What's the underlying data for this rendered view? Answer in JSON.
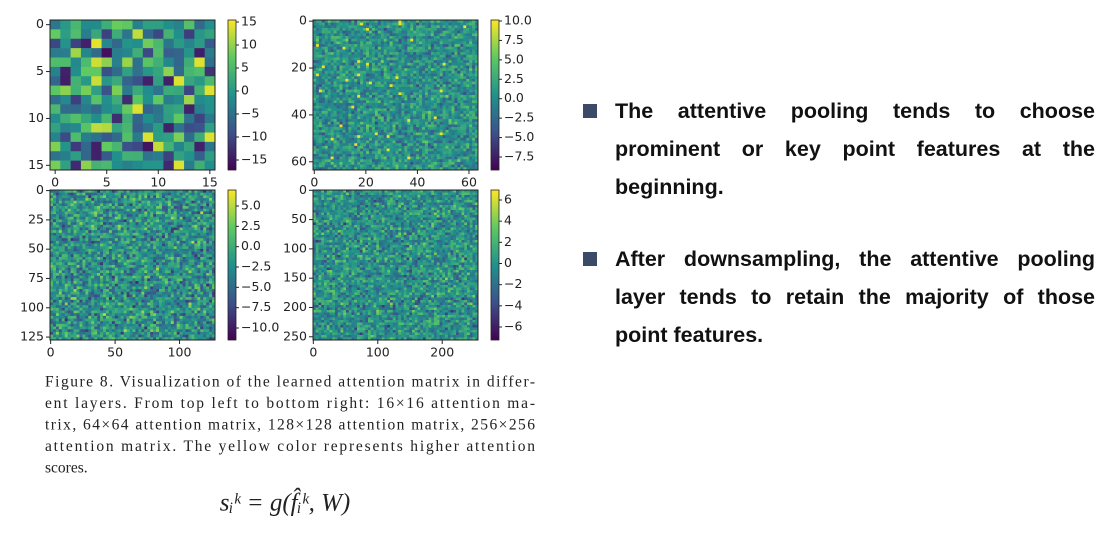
{
  "figure": {
    "panels": [
      {
        "xticks": [
          "0",
          "5",
          "10",
          "15"
        ],
        "yticks": [
          "0",
          "5",
          "10",
          "15"
        ],
        "colorbar_ticks": [
          "15",
          "10",
          "5",
          "0",
          "−5",
          "−10",
          "−15"
        ]
      },
      {
        "xticks": [
          "0",
          "20",
          "40",
          "60"
        ],
        "yticks": [
          "0",
          "20",
          "40",
          "60"
        ],
        "colorbar_ticks": [
          "10.0",
          "7.5",
          "5.0",
          "2.5",
          "0.0",
          "−2.5",
          "−5.0",
          "−7.5"
        ]
      },
      {
        "xticks": [
          "0",
          "50",
          "100"
        ],
        "yticks": [
          "0",
          "25",
          "50",
          "75",
          "100",
          "125"
        ],
        "colorbar_ticks": [
          "5.0",
          "2.5",
          "0.0",
          "−2.5",
          "−5.0",
          "−7.5",
          "−10.0"
        ]
      },
      {
        "xticks": [
          "0",
          "100",
          "200"
        ],
        "yticks": [
          "0",
          "50",
          "100",
          "150",
          "200",
          "250"
        ],
        "colorbar_ticks": [
          "6",
          "4",
          "2",
          "0",
          "−2",
          "−4",
          "−6"
        ]
      }
    ],
    "caption": [
      "Figure 8. Visualization of the learned attention matrix in differ-",
      "ent layers.  From top left to bottom right:  16×16 attention ma-",
      "trix, 64×64 attention matrix, 128×128 attention matrix, 256×256",
      "attention matrix.  The yellow color represents higher attention",
      "scores."
    ],
    "formula": "sᵢᵏ = g(f̂ᵢᵏ, W)"
  },
  "bullets": [
    "The attentive pooling tends to choose prominent or key point features at the beginning.",
    "After downsampling, the attentive pooling layer tends to retain the majority of those point features."
  ]
}
